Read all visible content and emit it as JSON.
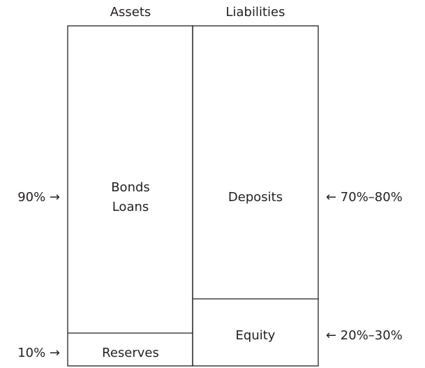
{
  "columns": [
    {
      "header": "Assets",
      "blocks": [
        {
          "lines": [
            "Bonds",
            "Loans"
          ]
        },
        {
          "lines": [
            "Reserves"
          ]
        }
      ]
    },
    {
      "header": "Liabilities",
      "blocks": [
        {
          "lines": [
            "Deposits"
          ]
        },
        {
          "lines": [
            "Equity"
          ]
        }
      ]
    }
  ],
  "annotations": {
    "left": [
      "90% →",
      "10% →"
    ],
    "right": [
      "← 70%–80%",
      "← 20%–30%"
    ]
  }
}
